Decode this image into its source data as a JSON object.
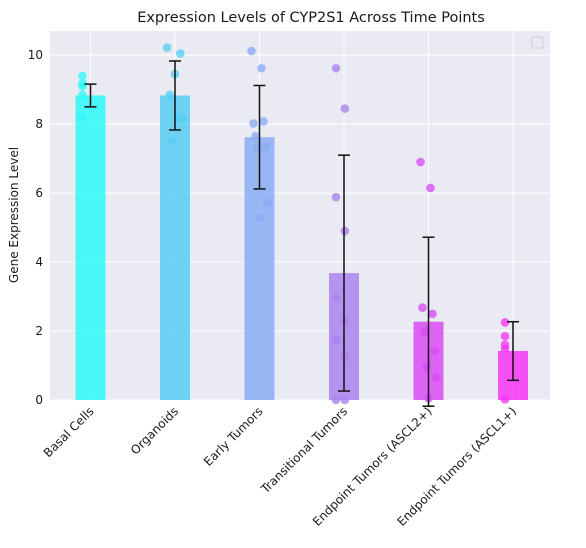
{
  "chart_data": {
    "type": "bar",
    "title": "Expression Levels of CYP2S1 Across Time Points",
    "xlabel": "",
    "ylabel": "Gene Expression Level",
    "ylim": [
      0,
      10.7
    ],
    "yticks": [
      0,
      2,
      4,
      6,
      8,
      10
    ],
    "categories": [
      "Basal Cells",
      "Organoids",
      "Early Tumors",
      "Transitional Tumors",
      "Endpoint Tumors (ASCL2+)",
      "Endpoint Tumors (ASCL1+)"
    ],
    "values": [
      8.83,
      8.83,
      7.62,
      3.68,
      2.27,
      1.42
    ],
    "error": [
      0.33,
      1.0,
      1.5,
      3.42,
      2.45,
      0.85
    ],
    "points": [
      [
        9.4,
        9.1,
        9.18,
        8.2,
        8.85
      ],
      [
        10.22,
        10.05,
        9.45,
        8.85,
        8.15,
        8.2,
        7.5
      ],
      [
        10.12,
        9.62,
        8.02,
        8.08,
        7.65,
        7.35,
        7.3,
        5.72,
        5.28
      ],
      [
        9.62,
        8.45,
        5.88,
        4.9,
        2.95,
        2.3,
        1.75,
        1.25,
        0.0,
        0.0
      ],
      [
        6.9,
        6.15,
        2.68,
        2.5,
        2.0,
        1.42,
        0.95,
        0.65,
        0.05
      ],
      [
        2.25,
        1.85,
        1.6,
        1.48,
        0.02
      ]
    ],
    "colors": [
      "#2ef9f8",
      "#57cdf3",
      "#8aabf5",
      "#aa82ee",
      "#d94bf5",
      "#f635f3"
    ],
    "grid": true,
    "background": "#eaeaf2",
    "legend": "top-right"
  }
}
